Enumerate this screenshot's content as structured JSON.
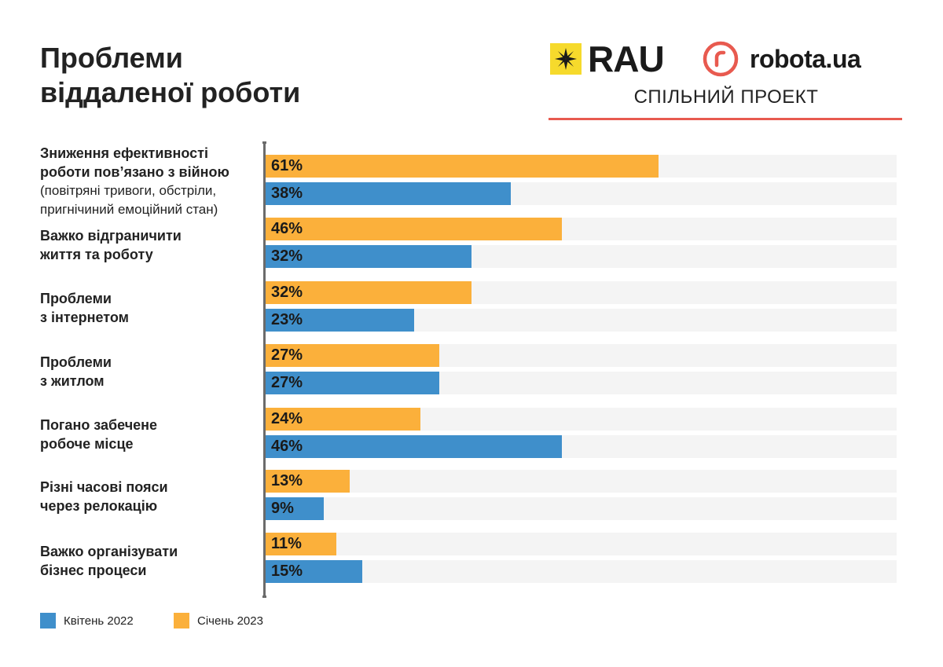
{
  "title": {
    "line1": "Проблеми",
    "line2": "віддаленої роботи"
  },
  "header": {
    "rau_logo_text": "RAU",
    "robota_logo_text": "robota.ua",
    "joint_project": "СПІЛЬНИЙ ПРОЕКТ"
  },
  "colors": {
    "jan_2023": "#fbb03b",
    "apr_2022": "#3f8fcb",
    "track": "#f4f4f4",
    "accent_line": "#e85a4f",
    "rau_yellow": "#f6da2c",
    "robota_red": "#e85a4f"
  },
  "chart_data": {
    "type": "bar",
    "orientation": "horizontal",
    "title": "Проблеми віддаленої роботи",
    "xlim": [
      0,
      100
    ],
    "unit": "%",
    "categories": [
      {
        "label": "Зниження ефективності\nроботи пов’язано з війною",
        "sublabel": "(повітряні тривоги, обстріли,\nпригнічиний емоційний стан)"
      },
      {
        "label": "Важко відграничити\nжиття та роботу",
        "sublabel": ""
      },
      {
        "label": "Проблеми\nз інтернетом",
        "sublabel": ""
      },
      {
        "label": "Проблеми\nз житлом",
        "sublabel": ""
      },
      {
        "label": "Погано забечене\nробоче місце",
        "sublabel": ""
      },
      {
        "label": "Різні часові пояси\nчерез релокацію",
        "sublabel": ""
      },
      {
        "label": "Важко організувати\nбізнес процеси",
        "sublabel": ""
      }
    ],
    "series": [
      {
        "name": "Січень 2023",
        "key": "jan",
        "values": [
          61,
          46,
          32,
          27,
          24,
          13,
          11
        ],
        "labels": [
          "61%",
          "46%",
          "32%",
          "27%",
          "24%",
          "13%",
          "11%"
        ]
      },
      {
        "name": "Квітень 2022",
        "key": "apr",
        "values": [
          38,
          32,
          23,
          27,
          46,
          9,
          15
        ],
        "labels": [
          "38%",
          "32%",
          "23%",
          "27%",
          "46%",
          "9%",
          "15%"
        ]
      }
    ],
    "legend": [
      {
        "name": "Квітень 2022",
        "series": "apr"
      },
      {
        "name": "Січень 2023",
        "series": "jan"
      }
    ],
    "legend_position": "bottom-left"
  }
}
